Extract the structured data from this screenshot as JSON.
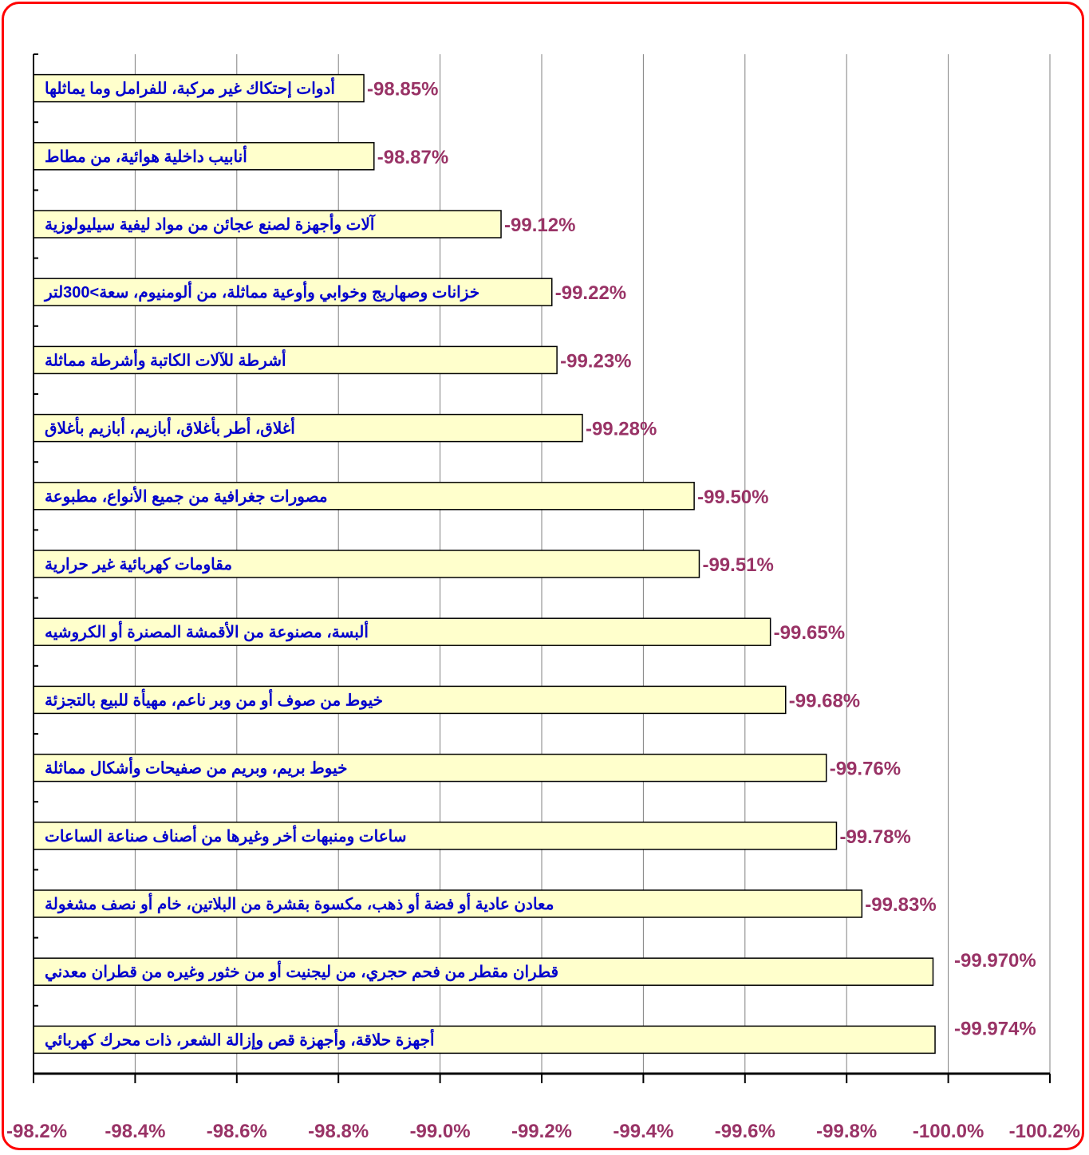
{
  "chart_data": {
    "type": "bar",
    "orientation": "horizontal",
    "title": "",
    "xlabel": "",
    "ylabel": "",
    "xlim": [
      -98.2,
      -100.2
    ],
    "grid": true,
    "legend": "none",
    "colors": {
      "bar_fill": "#ffffcc",
      "bar_stroke": "#000000",
      "category_text": "#0000cc",
      "value_text": "#993366",
      "frame": "#ff0000",
      "gridline": "#000000"
    },
    "x_ticks": [
      -98.2,
      -98.4,
      -98.6,
      -98.8,
      -99.0,
      -99.2,
      -99.4,
      -99.6,
      -99.8,
      -100.0,
      -100.2
    ],
    "x_tick_labels": [
      "-98.2%",
      "-98.4%",
      "-98.6%",
      "-98.8%",
      "-99.0%",
      "-99.2%",
      "-99.4%",
      "-99.6%",
      "-99.8%",
      "-100.0%",
      "-100.2%"
    ],
    "categories": [
      "أدوات إحتكاك غير مركبة، للفرامل وما يماثلها",
      "أنابيب داخلية هوائية، من مطاط",
      "آلات وأجهزة لصنع عجائن من مواد ليفية سيليولوزية",
      "خزانات وصهاريج وخوابي وأوعية مماثلة، من ألومنيوم، سعة>300لتر",
      "أشرطة للآلات الكاتبة وأشرطة مماثلة",
      "أغلاق، أطر بأغلاق، أبازيم، أبازيم بأغلاق",
      "مصورات جغرافية من جميع الأنواع، مطبوعة",
      "مقاومات كهربائية غير حرارية",
      "ألبسة، مصنوعة من الأقمشة المصنرة أو الكروشيه",
      "خيوط من صوف أو من وبر ناعم، مهيأة للبيع بالتجزئة",
      "خيوط بريم، وبريم من صفيحات وأشكال مماثلة",
      "ساعات ومنبهات أخر وغيرها من أصناف صناعة الساعات",
      "معادن عادية أو فضة أو ذهب، مكسوة بقشرة من البلاتين، خام أو نصف مشغولة",
      "قطران مقطر من فحم حجري، من ليجنيت أو من خثور وغيره من قطران معدني",
      "أجهزة حلاقة، وأجهزة قص وإزالة الشعر، ذات محرك كهربائي"
    ],
    "values": [
      -98.85,
      -98.87,
      -99.12,
      -99.22,
      -99.23,
      -99.28,
      -99.5,
      -99.51,
      -99.65,
      -99.68,
      -99.76,
      -99.78,
      -99.83,
      -99.97,
      -99.974
    ],
    "value_labels": [
      "-98.85%",
      "-98.87%",
      "-99.12%",
      "-99.22%",
      "-99.23%",
      "-99.28%",
      "-99.50%",
      "-99.51%",
      "-99.65%",
      "-99.68%",
      "-99.76%",
      "-99.78%",
      "-99.83%",
      "-99.970%",
      "-99.974%"
    ]
  }
}
